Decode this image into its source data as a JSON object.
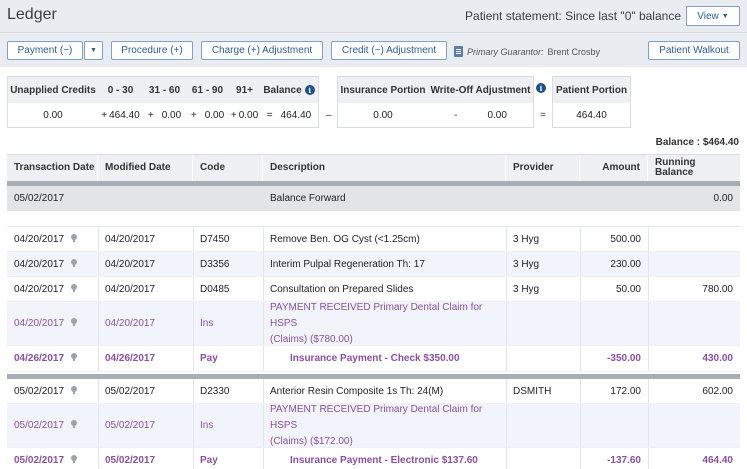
{
  "header": {
    "title": "Ledger",
    "statement": "Patient statement: Since last \"0\" balance",
    "view_label": "View"
  },
  "toolbar": {
    "payment": "Payment (−)",
    "procedure": "Procedure (+)",
    "charge_adj": "Charge (+) Adjustment",
    "credit_adj": "Credit (−) Adjustment",
    "guarantor_label": "Primary Guarantor:",
    "guarantor_name": "Brent Crosby",
    "walkout": "Patient Walkout"
  },
  "summary": {
    "headers": [
      "Unapplied Credits",
      "0 - 30",
      "31 - 60",
      "61 - 90",
      "91+",
      "Balance"
    ],
    "values": [
      "0.00",
      "464.40",
      "0.00",
      "0.00",
      "0.00",
      "464.40"
    ],
    "ops": [
      "+",
      "+",
      "+",
      "+",
      "="
    ],
    "minus": "–",
    "ins_headers": [
      "Insurance Portion",
      "Write-Off Adjustment"
    ],
    "ins_values": [
      "0.00",
      "0.00"
    ],
    "ins_op": "-",
    "equals": "=",
    "patient_header": "Patient Portion",
    "patient_value": "464.40"
  },
  "balance_line": "Balance : $464.40",
  "table": {
    "headers": [
      "Transaction Date",
      "Modified Date",
      "Code",
      "Description",
      "Provider",
      "Amount",
      "Running Balance"
    ],
    "balance_forward": {
      "date": "05/02/2017",
      "description": "Balance Forward",
      "running": "0.00"
    },
    "group1": [
      {
        "tdate": "04/20/2017",
        "mdate": "04/20/2017",
        "code": "D7450",
        "desc": "Remove Ben. OG Cyst (<1.25cm)",
        "provider": "3 Hyg",
        "amount": "500.00",
        "running": ""
      },
      {
        "tdate": "04/20/2017",
        "mdate": "04/20/2017",
        "code": "D3356",
        "desc": "Interim Pulpal Regeneration Th: 17",
        "provider": "3 Hyg",
        "amount": "230.00",
        "running": ""
      },
      {
        "tdate": "04/20/2017",
        "mdate": "04/20/2017",
        "code": "D0485",
        "desc": "Consultation on Prepared Slides",
        "provider": "3 Hyg",
        "amount": "50.00",
        "running": "780.00"
      },
      {
        "tdate": "04/20/2017",
        "mdate": "04/20/2017",
        "code": "Ins",
        "desc1": "PAYMENT RECEIVED Primary Dental Claim for HSPS",
        "desc2": "(Claims) ($780.00)",
        "provider": "",
        "amount": "",
        "running": ""
      },
      {
        "tdate": "04/26/2017",
        "mdate": "04/26/2017",
        "code": "Pay",
        "desc": "Insurance Payment - Check $350.00",
        "provider": "",
        "amount": "-350.00",
        "running": "430.00"
      }
    ],
    "group2": [
      {
        "tdate": "05/02/2017",
        "mdate": "05/02/2017",
        "code": "D2330",
        "desc": "Anterior Resin Composite 1s Th: 24(M)",
        "provider": "DSMITH",
        "amount": "172.00",
        "running": "602.00"
      },
      {
        "tdate": "05/02/2017",
        "mdate": "05/02/2017",
        "code": "Ins",
        "desc1": "PAYMENT RECEIVED Primary Dental Claim for HSPS",
        "desc2": "(Claims) ($172.00)",
        "provider": "",
        "amount": "",
        "running": ""
      },
      {
        "tdate": "05/02/2017",
        "mdate": "05/02/2017",
        "code": "Pay",
        "desc": "Insurance Payment - Electronic $137.60",
        "provider": "",
        "amount": "-137.60",
        "running": "464.40"
      }
    ]
  }
}
